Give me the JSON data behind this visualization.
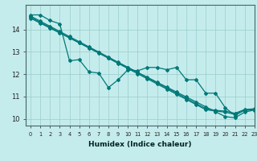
{
  "xlabel": "Humidex (Indice chaleur)",
  "bg_color": "#c5ecec",
  "line_color": "#007878",
  "grid_color": "#99cccc",
  "xlim": [
    -0.5,
    23
  ],
  "ylim": [
    9.7,
    15.1
  ],
  "yticks": [
    10,
    11,
    12,
    13,
    14
  ],
  "xticks": [
    0,
    1,
    2,
    3,
    4,
    5,
    6,
    7,
    8,
    9,
    10,
    11,
    12,
    13,
    14,
    15,
    16,
    17,
    18,
    19,
    20,
    21,
    22,
    23
  ],
  "irregular_series": [
    14.65,
    14.65,
    14.4,
    14.25,
    12.6,
    12.65,
    12.1,
    12.05,
    11.4,
    11.75,
    12.2,
    12.15,
    12.3,
    12.3,
    12.2,
    12.3,
    11.75,
    11.75,
    11.15,
    11.15,
    10.5,
    10.15,
    10.4,
    10.4
  ],
  "straight_lines": [
    [
      14.5,
      14.28,
      14.06,
      13.84,
      13.62,
      13.4,
      13.18,
      12.96,
      12.74,
      12.52,
      12.3,
      12.08,
      11.86,
      11.64,
      11.42,
      11.2,
      10.98,
      10.76,
      10.54,
      10.32,
      10.1,
      10.05,
      10.3,
      10.4
    ],
    [
      14.55,
      14.32,
      14.09,
      13.86,
      13.63,
      13.4,
      13.17,
      12.94,
      12.71,
      12.48,
      12.25,
      12.02,
      11.79,
      11.56,
      11.33,
      11.1,
      10.87,
      10.64,
      10.41,
      10.35,
      10.3,
      10.2,
      10.38,
      10.42
    ],
    [
      14.6,
      14.37,
      14.14,
      13.91,
      13.68,
      13.45,
      13.22,
      12.99,
      12.76,
      12.53,
      12.3,
      12.07,
      11.84,
      11.61,
      11.38,
      11.15,
      10.92,
      10.69,
      10.46,
      10.38,
      10.35,
      10.25,
      10.42,
      10.45
    ]
  ],
  "marker": "D",
  "markersize": 2.0,
  "linewidth": 0.9
}
